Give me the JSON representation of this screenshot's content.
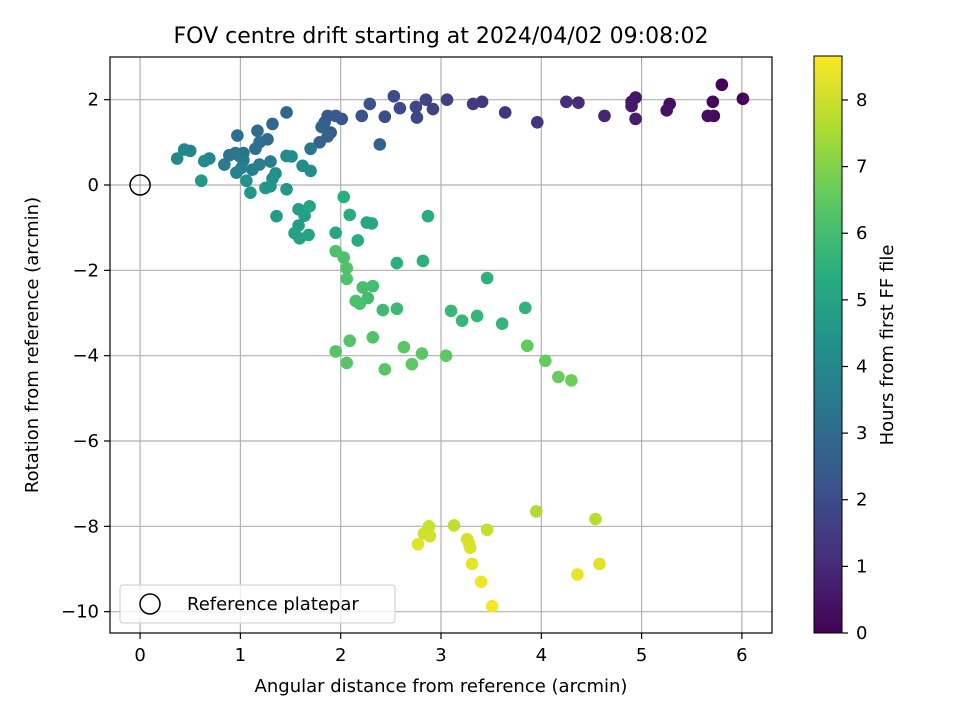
{
  "chart_data": {
    "type": "scatter",
    "title": "FOV centre drift starting at 2024/04/02 09:08:02",
    "xlabel": "Angular distance from reference (arcmin)",
    "ylabel": "Rotation from reference (arcmin)",
    "xlim": [
      -0.3,
      6.3
    ],
    "ylim": [
      -10.5,
      3.0
    ],
    "xticks": [
      0,
      1,
      2,
      3,
      4,
      5,
      6
    ],
    "yticks": [
      -10,
      -8,
      -6,
      -4,
      -2,
      0,
      2
    ],
    "grid": true,
    "colorbar": {
      "label": "Hours from first FF file",
      "range": [
        0,
        8.66
      ],
      "ticks": [
        0,
        1,
        2,
        3,
        4,
        5,
        6,
        7,
        8
      ],
      "colormap": "viridis"
    },
    "legend": {
      "placement": "bottom-left",
      "entries": [
        "Reference platepar"
      ]
    },
    "reference_point": {
      "x": 0,
      "y": 0
    },
    "points": [
      {
        "x": 5.8,
        "y": 2.35,
        "t": 0.05
      },
      {
        "x": 6.01,
        "y": 2.02,
        "t": 0.1
      },
      {
        "x": 5.71,
        "y": 1.95,
        "t": 0.15
      },
      {
        "x": 5.72,
        "y": 1.62,
        "t": 0.25
      },
      {
        "x": 5.66,
        "y": 1.62,
        "t": 0.3
      },
      {
        "x": 5.28,
        "y": 1.9,
        "t": 0.35
      },
      {
        "x": 5.25,
        "y": 1.75,
        "t": 0.4
      },
      {
        "x": 4.94,
        "y": 2.05,
        "t": 0.5
      },
      {
        "x": 4.9,
        "y": 1.95,
        "t": 0.55
      },
      {
        "x": 4.9,
        "y": 1.85,
        "t": 0.6
      },
      {
        "x": 4.94,
        "y": 1.55,
        "t": 0.7
      },
      {
        "x": 4.63,
        "y": 1.62,
        "t": 0.9
      },
      {
        "x": 4.37,
        "y": 1.93,
        "t": 1.0
      },
      {
        "x": 4.25,
        "y": 1.95,
        "t": 1.1
      },
      {
        "x": 3.96,
        "y": 1.47,
        "t": 1.2
      },
      {
        "x": 3.64,
        "y": 1.7,
        "t": 1.3
      },
      {
        "x": 3.41,
        "y": 1.95,
        "t": 1.4
      },
      {
        "x": 3.32,
        "y": 1.9,
        "t": 1.45
      },
      {
        "x": 3.06,
        "y": 2.0,
        "t": 1.6
      },
      {
        "x": 2.92,
        "y": 1.78,
        "t": 1.7
      },
      {
        "x": 2.85,
        "y": 2.0,
        "t": 1.75
      },
      {
        "x": 2.75,
        "y": 1.83,
        "t": 1.8
      },
      {
        "x": 2.76,
        "y": 1.58,
        "t": 1.85
      },
      {
        "x": 2.59,
        "y": 1.8,
        "t": 1.9
      },
      {
        "x": 2.53,
        "y": 2.08,
        "t": 1.95
      },
      {
        "x": 2.44,
        "y": 1.6,
        "t": 2.05
      },
      {
        "x": 2.29,
        "y": 1.9,
        "t": 2.15
      },
      {
        "x": 2.21,
        "y": 1.62,
        "t": 2.2
      },
      {
        "x": 2.01,
        "y": 1.55,
        "t": 2.3
      },
      {
        "x": 1.95,
        "y": 1.62,
        "t": 2.4
      },
      {
        "x": 1.87,
        "y": 1.62,
        "t": 2.45
      },
      {
        "x": 1.84,
        "y": 1.47,
        "t": 2.5
      },
      {
        "x": 1.9,
        "y": 1.23,
        "t": 2.55
      },
      {
        "x": 1.81,
        "y": 1.36,
        "t": 2.65
      },
      {
        "x": 1.87,
        "y": 1.14,
        "t": 2.7
      },
      {
        "x": 1.79,
        "y": 1.0,
        "t": 2.75
      },
      {
        "x": 2.39,
        "y": 0.95,
        "t": 2.8
      },
      {
        "x": 1.46,
        "y": 1.7,
        "t": 2.85
      },
      {
        "x": 1.32,
        "y": 1.43,
        "t": 2.95
      },
      {
        "x": 1.17,
        "y": 1.27,
        "t": 3.0
      },
      {
        "x": 1.27,
        "y": 1.07,
        "t": 3.05
      },
      {
        "x": 1.19,
        "y": 1.0,
        "t": 3.1
      },
      {
        "x": 0.97,
        "y": 1.16,
        "t": 3.15
      },
      {
        "x": 1.15,
        "y": 0.85,
        "t": 3.2
      },
      {
        "x": 1.03,
        "y": 0.75,
        "t": 3.25
      },
      {
        "x": 0.95,
        "y": 0.75,
        "t": 3.3
      },
      {
        "x": 0.89,
        "y": 0.7,
        "t": 3.35
      },
      {
        "x": 0.99,
        "y": 0.68,
        "t": 3.4
      },
      {
        "x": 1.7,
        "y": 0.85,
        "t": 3.45
      },
      {
        "x": 1.03,
        "y": 0.58,
        "t": 3.5
      },
      {
        "x": 0.84,
        "y": 0.48,
        "t": 3.55
      },
      {
        "x": 1.3,
        "y": 0.55,
        "t": 3.6
      },
      {
        "x": 1.19,
        "y": 0.48,
        "t": 3.65
      },
      {
        "x": 1.12,
        "y": 0.36,
        "t": 3.7
      },
      {
        "x": 1.01,
        "y": 0.4,
        "t": 3.75
      },
      {
        "x": 0.96,
        "y": 0.29,
        "t": 3.8
      },
      {
        "x": 0.5,
        "y": 0.8,
        "t": 3.85
      },
      {
        "x": 0.44,
        "y": 0.83,
        "t": 3.9
      },
      {
        "x": 0.69,
        "y": 0.62,
        "t": 3.95
      },
      {
        "x": 0.64,
        "y": 0.56,
        "t": 4.0
      },
      {
        "x": 0.37,
        "y": 0.62,
        "t": 4.05
      },
      {
        "x": 1.46,
        "y": 0.68,
        "t": 4.1
      },
      {
        "x": 1.51,
        "y": 0.67,
        "t": 4.15
      },
      {
        "x": 1.62,
        "y": 0.45,
        "t": 4.2
      },
      {
        "x": 1.7,
        "y": 0.33,
        "t": 4.25
      },
      {
        "x": 1.35,
        "y": 0.27,
        "t": 4.3
      },
      {
        "x": 1.32,
        "y": 0.15,
        "t": 4.35
      },
      {
        "x": 1.06,
        "y": 0.1,
        "t": 4.4
      },
      {
        "x": 1.3,
        "y": -0.03,
        "t": 4.45
      },
      {
        "x": 1.25,
        "y": -0.07,
        "t": 4.5
      },
      {
        "x": 1.46,
        "y": -0.1,
        "t": 4.55
      },
      {
        "x": 1.1,
        "y": -0.18,
        "t": 4.6
      },
      {
        "x": 0.61,
        "y": 0.1,
        "t": 4.65
      },
      {
        "x": 1.36,
        "y": -0.73,
        "t": 4.7
      },
      {
        "x": 1.58,
        "y": -0.57,
        "t": 4.75
      },
      {
        "x": 1.64,
        "y": -0.72,
        "t": 4.8
      },
      {
        "x": 1.58,
        "y": -0.95,
        "t": 4.85
      },
      {
        "x": 1.54,
        "y": -1.13,
        "t": 4.9
      },
      {
        "x": 1.59,
        "y": -1.25,
        "t": 4.95
      },
      {
        "x": 1.68,
        "y": -1.17,
        "t": 5.0
      },
      {
        "x": 1.69,
        "y": -0.5,
        "t": 5.05
      },
      {
        "x": 1.95,
        "y": -1.12,
        "t": 5.1
      },
      {
        "x": 2.26,
        "y": -0.88,
        "t": 5.15
      },
      {
        "x": 2.31,
        "y": -0.9,
        "t": 5.2
      },
      {
        "x": 2.17,
        "y": -1.3,
        "t": 5.25
      },
      {
        "x": 2.09,
        "y": -0.7,
        "t": 5.3
      },
      {
        "x": 2.87,
        "y": -0.73,
        "t": 5.35
      },
      {
        "x": 2.03,
        "y": -0.28,
        "t": 5.4
      },
      {
        "x": 2.56,
        "y": -1.83,
        "t": 5.45
      },
      {
        "x": 2.82,
        "y": -1.78,
        "t": 5.5
      },
      {
        "x": 3.46,
        "y": -2.18,
        "t": 5.55
      },
      {
        "x": 3.84,
        "y": -2.88,
        "t": 5.6
      },
      {
        "x": 3.61,
        "y": -3.25,
        "t": 5.65
      },
      {
        "x": 3.36,
        "y": -3.07,
        "t": 5.7
      },
      {
        "x": 3.21,
        "y": -3.18,
        "t": 5.75
      },
      {
        "x": 3.1,
        "y": -2.95,
        "t": 5.8
      },
      {
        "x": 2.56,
        "y": -2.9,
        "t": 5.85
      },
      {
        "x": 2.42,
        "y": -2.93,
        "t": 5.9
      },
      {
        "x": 2.27,
        "y": -2.65,
        "t": 5.95
      },
      {
        "x": 2.32,
        "y": -2.37,
        "t": 6.0
      },
      {
        "x": 2.22,
        "y": -2.4,
        "t": 6.05
      },
      {
        "x": 2.15,
        "y": -2.72,
        "t": 6.1
      },
      {
        "x": 2.19,
        "y": -2.78,
        "t": 6.12
      },
      {
        "x": 1.95,
        "y": -1.55,
        "t": 6.15
      },
      {
        "x": 2.03,
        "y": -1.7,
        "t": 6.18
      },
      {
        "x": 2.06,
        "y": -1.95,
        "t": 6.2
      },
      {
        "x": 2.06,
        "y": -2.2,
        "t": 6.22
      },
      {
        "x": 2.32,
        "y": -3.57,
        "t": 6.25
      },
      {
        "x": 2.09,
        "y": -3.65,
        "t": 6.28
      },
      {
        "x": 1.95,
        "y": -3.9,
        "t": 6.3
      },
      {
        "x": 2.06,
        "y": -4.17,
        "t": 6.35
      },
      {
        "x": 2.44,
        "y": -4.32,
        "t": 6.38
      },
      {
        "x": 2.63,
        "y": -3.8,
        "t": 6.4
      },
      {
        "x": 2.81,
        "y": -3.95,
        "t": 6.42
      },
      {
        "x": 2.71,
        "y": -4.2,
        "t": 6.45
      },
      {
        "x": 3.05,
        "y": -4.0,
        "t": 6.5
      },
      {
        "x": 3.86,
        "y": -3.77,
        "t": 6.55
      },
      {
        "x": 4.04,
        "y": -4.12,
        "t": 6.6
      },
      {
        "x": 4.17,
        "y": -4.5,
        "t": 6.65
      },
      {
        "x": 4.3,
        "y": -4.58,
        "t": 6.7
      },
      {
        "x": 3.95,
        "y": -7.65,
        "t": 7.6
      },
      {
        "x": 4.54,
        "y": -7.83,
        "t": 7.7
      },
      {
        "x": 3.13,
        "y": -7.98,
        "t": 7.85
      },
      {
        "x": 3.46,
        "y": -8.08,
        "t": 7.9
      },
      {
        "x": 2.88,
        "y": -8.0,
        "t": 7.95
      },
      {
        "x": 2.83,
        "y": -8.17,
        "t": 8.0
      },
      {
        "x": 2.89,
        "y": -8.23,
        "t": 8.05
      },
      {
        "x": 3.26,
        "y": -8.3,
        "t": 8.1
      },
      {
        "x": 3.28,
        "y": -8.4,
        "t": 8.15
      },
      {
        "x": 3.29,
        "y": -8.5,
        "t": 8.2
      },
      {
        "x": 2.77,
        "y": -8.42,
        "t": 8.25
      },
      {
        "x": 4.58,
        "y": -8.88,
        "t": 8.3
      },
      {
        "x": 3.31,
        "y": -8.88,
        "t": 8.35
      },
      {
        "x": 4.36,
        "y": -9.13,
        "t": 8.4
      },
      {
        "x": 3.4,
        "y": -9.3,
        "t": 8.45
      },
      {
        "x": 3.51,
        "y": -9.87,
        "t": 8.55
      }
    ]
  }
}
